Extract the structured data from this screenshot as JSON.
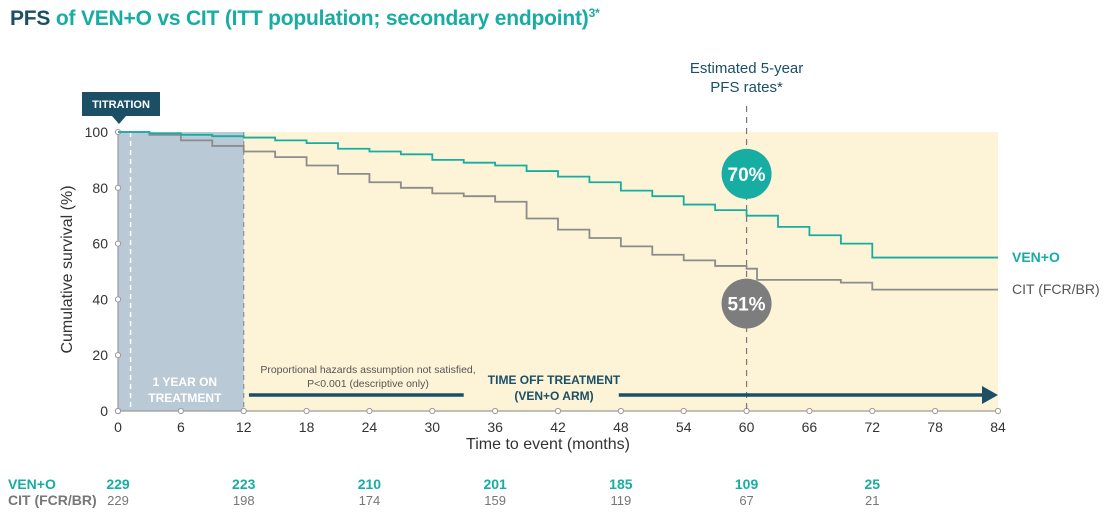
{
  "title": {
    "prefix": "PFS",
    "main": "of VEN+O vs CIT (ITT population; secondary endpoint)",
    "superscript": "3*"
  },
  "colors": {
    "ven": "#17ada3",
    "cit": "#8c8c8c",
    "navy": "#1b4f66",
    "bg": "#fdf3d6",
    "treatment": "#b9c9d6"
  },
  "annotations": {
    "titration": "TITRATION",
    "estimate_line1": "Estimated 5-year",
    "estimate_line2": "PFS rates*",
    "one_year_line1": "1 YEAR ON",
    "one_year_line2": "TREATMENT",
    "hazards_line1": "Proportional hazards assumption not satisfied,",
    "hazards_line2": "P<0.001 (descriptive only)",
    "time_off_line1": "TIME OFF TREATMENT",
    "time_off_line2": "(VEN+O ARM)",
    "ven_rate": "70%",
    "cit_rate": "51%"
  },
  "chart_data": {
    "type": "line",
    "title": "PFS of VEN+O vs CIT (ITT population; secondary endpoint)",
    "xlabel": "Time to event (months)",
    "ylabel": "Cumulative survival (%)",
    "xlim": [
      0,
      84
    ],
    "ylim": [
      0,
      100
    ],
    "xticks": [
      0,
      6,
      12,
      18,
      24,
      30,
      36,
      42,
      48,
      54,
      60,
      66,
      72,
      78,
      84
    ],
    "yticks": [
      0,
      20,
      40,
      60,
      80,
      100
    ],
    "series": [
      {
        "name": "VEN+O",
        "x": [
          0,
          3,
          6,
          9,
          12,
          15,
          18,
          21,
          24,
          27,
          30,
          33,
          36,
          39,
          42,
          45,
          48,
          51,
          54,
          57,
          60,
          63,
          66,
          69,
          72,
          84
        ],
        "y": [
          100,
          99.5,
          99,
          98.5,
          98,
          97,
          96,
          94,
          93,
          92,
          90,
          89,
          88,
          86,
          84,
          82,
          79,
          77,
          74,
          72,
          70,
          66,
          63,
          60,
          55,
          55
        ]
      },
      {
        "name": "CIT (FCR/BR)",
        "x": [
          0,
          3,
          6,
          9,
          12,
          15,
          18,
          21,
          24,
          27,
          30,
          33,
          36,
          39,
          42,
          45,
          48,
          51,
          54,
          57,
          60,
          61,
          66,
          69,
          72,
          84
        ],
        "y": [
          100,
          99,
          97,
          95,
          93,
          91,
          88,
          85,
          82,
          80,
          78,
          77,
          75,
          69,
          65,
          62,
          59,
          56,
          54,
          52,
          51,
          47,
          47,
          46,
          43.5,
          43.5
        ]
      }
    ],
    "legend": [
      "VEN+O",
      "CIT (FCR/BR)"
    ],
    "vertical_marker": 60,
    "treatment_period": [
      0,
      12
    ],
    "numbers_at_risk": {
      "times": [
        0,
        12,
        24,
        36,
        48,
        60,
        72
      ],
      "rows": [
        {
          "name": "VEN+O",
          "values": [
            "229",
            "223",
            "210",
            "201",
            "185",
            "109",
            "25"
          ]
        },
        {
          "name": "CIT (FCR/BR)",
          "values": [
            "229",
            "198",
            "174",
            "159",
            "119",
            "67",
            "21"
          ]
        }
      ]
    }
  }
}
